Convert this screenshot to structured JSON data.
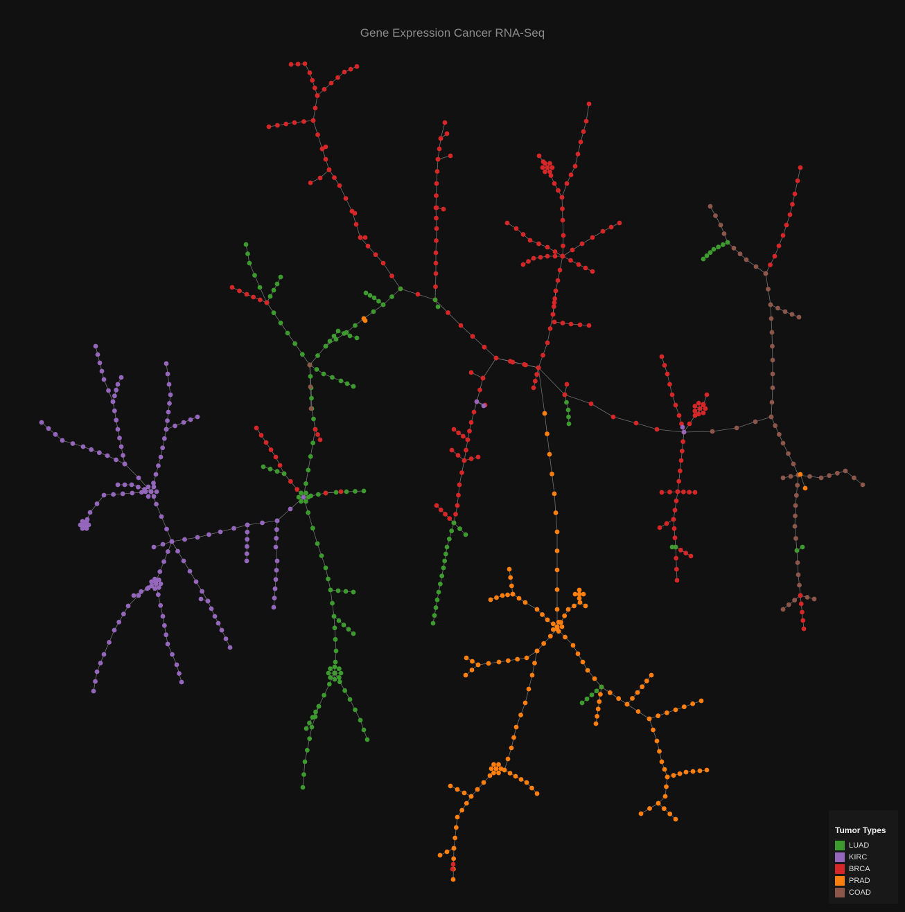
{
  "title": "Gene Expression Cancer RNA-Seq",
  "legend": {
    "title": "Tumor Types",
    "items": [
      {
        "label": "LUAD",
        "color": "#3d9a2f"
      },
      {
        "label": "KIRC",
        "color": "#9467bd"
      },
      {
        "label": "BRCA",
        "color": "#d62728"
      },
      {
        "label": "PRAD",
        "color": "#ff7f0e"
      },
      {
        "label": "COAD",
        "color": "#8c564b"
      }
    ]
  },
  "edge_color": "#8a8a8a"
}
